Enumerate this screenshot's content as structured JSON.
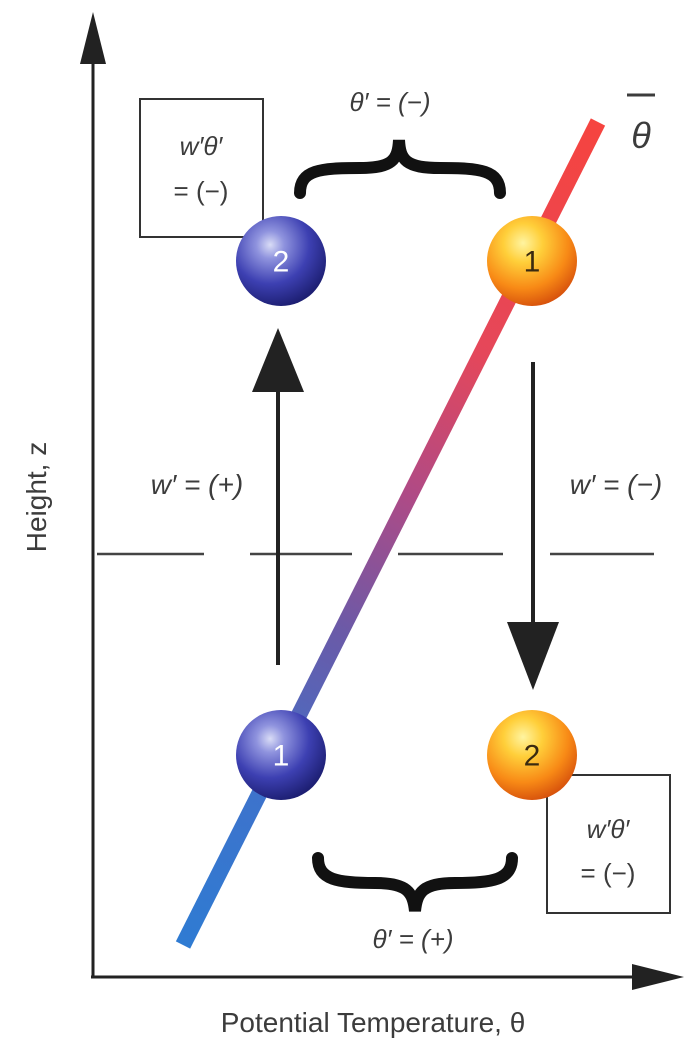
{
  "axes": {
    "y_label": "Height, z",
    "x_label": "Potential Temperature, θ"
  },
  "mean_profile": {
    "label": "θ"
  },
  "parcels": [
    {
      "id": "upper-left",
      "number": "2",
      "color": "blue"
    },
    {
      "id": "upper-right",
      "number": "1",
      "color": "orange"
    },
    {
      "id": "lower-left",
      "number": "1",
      "color": "blue"
    },
    {
      "id": "lower-right",
      "number": "2",
      "color": "orange"
    }
  ],
  "labels": {
    "theta_top": "θ′ = (−)",
    "theta_bottom": "θ′ = (+)",
    "w_up": "w′ = (+)",
    "w_down": "w′ = (−)"
  },
  "flux_boxes": [
    {
      "line1": "w′θ′",
      "line2": "= (−)"
    },
    {
      "line1": "w′θ′",
      "line2": "= (−)"
    }
  ]
}
